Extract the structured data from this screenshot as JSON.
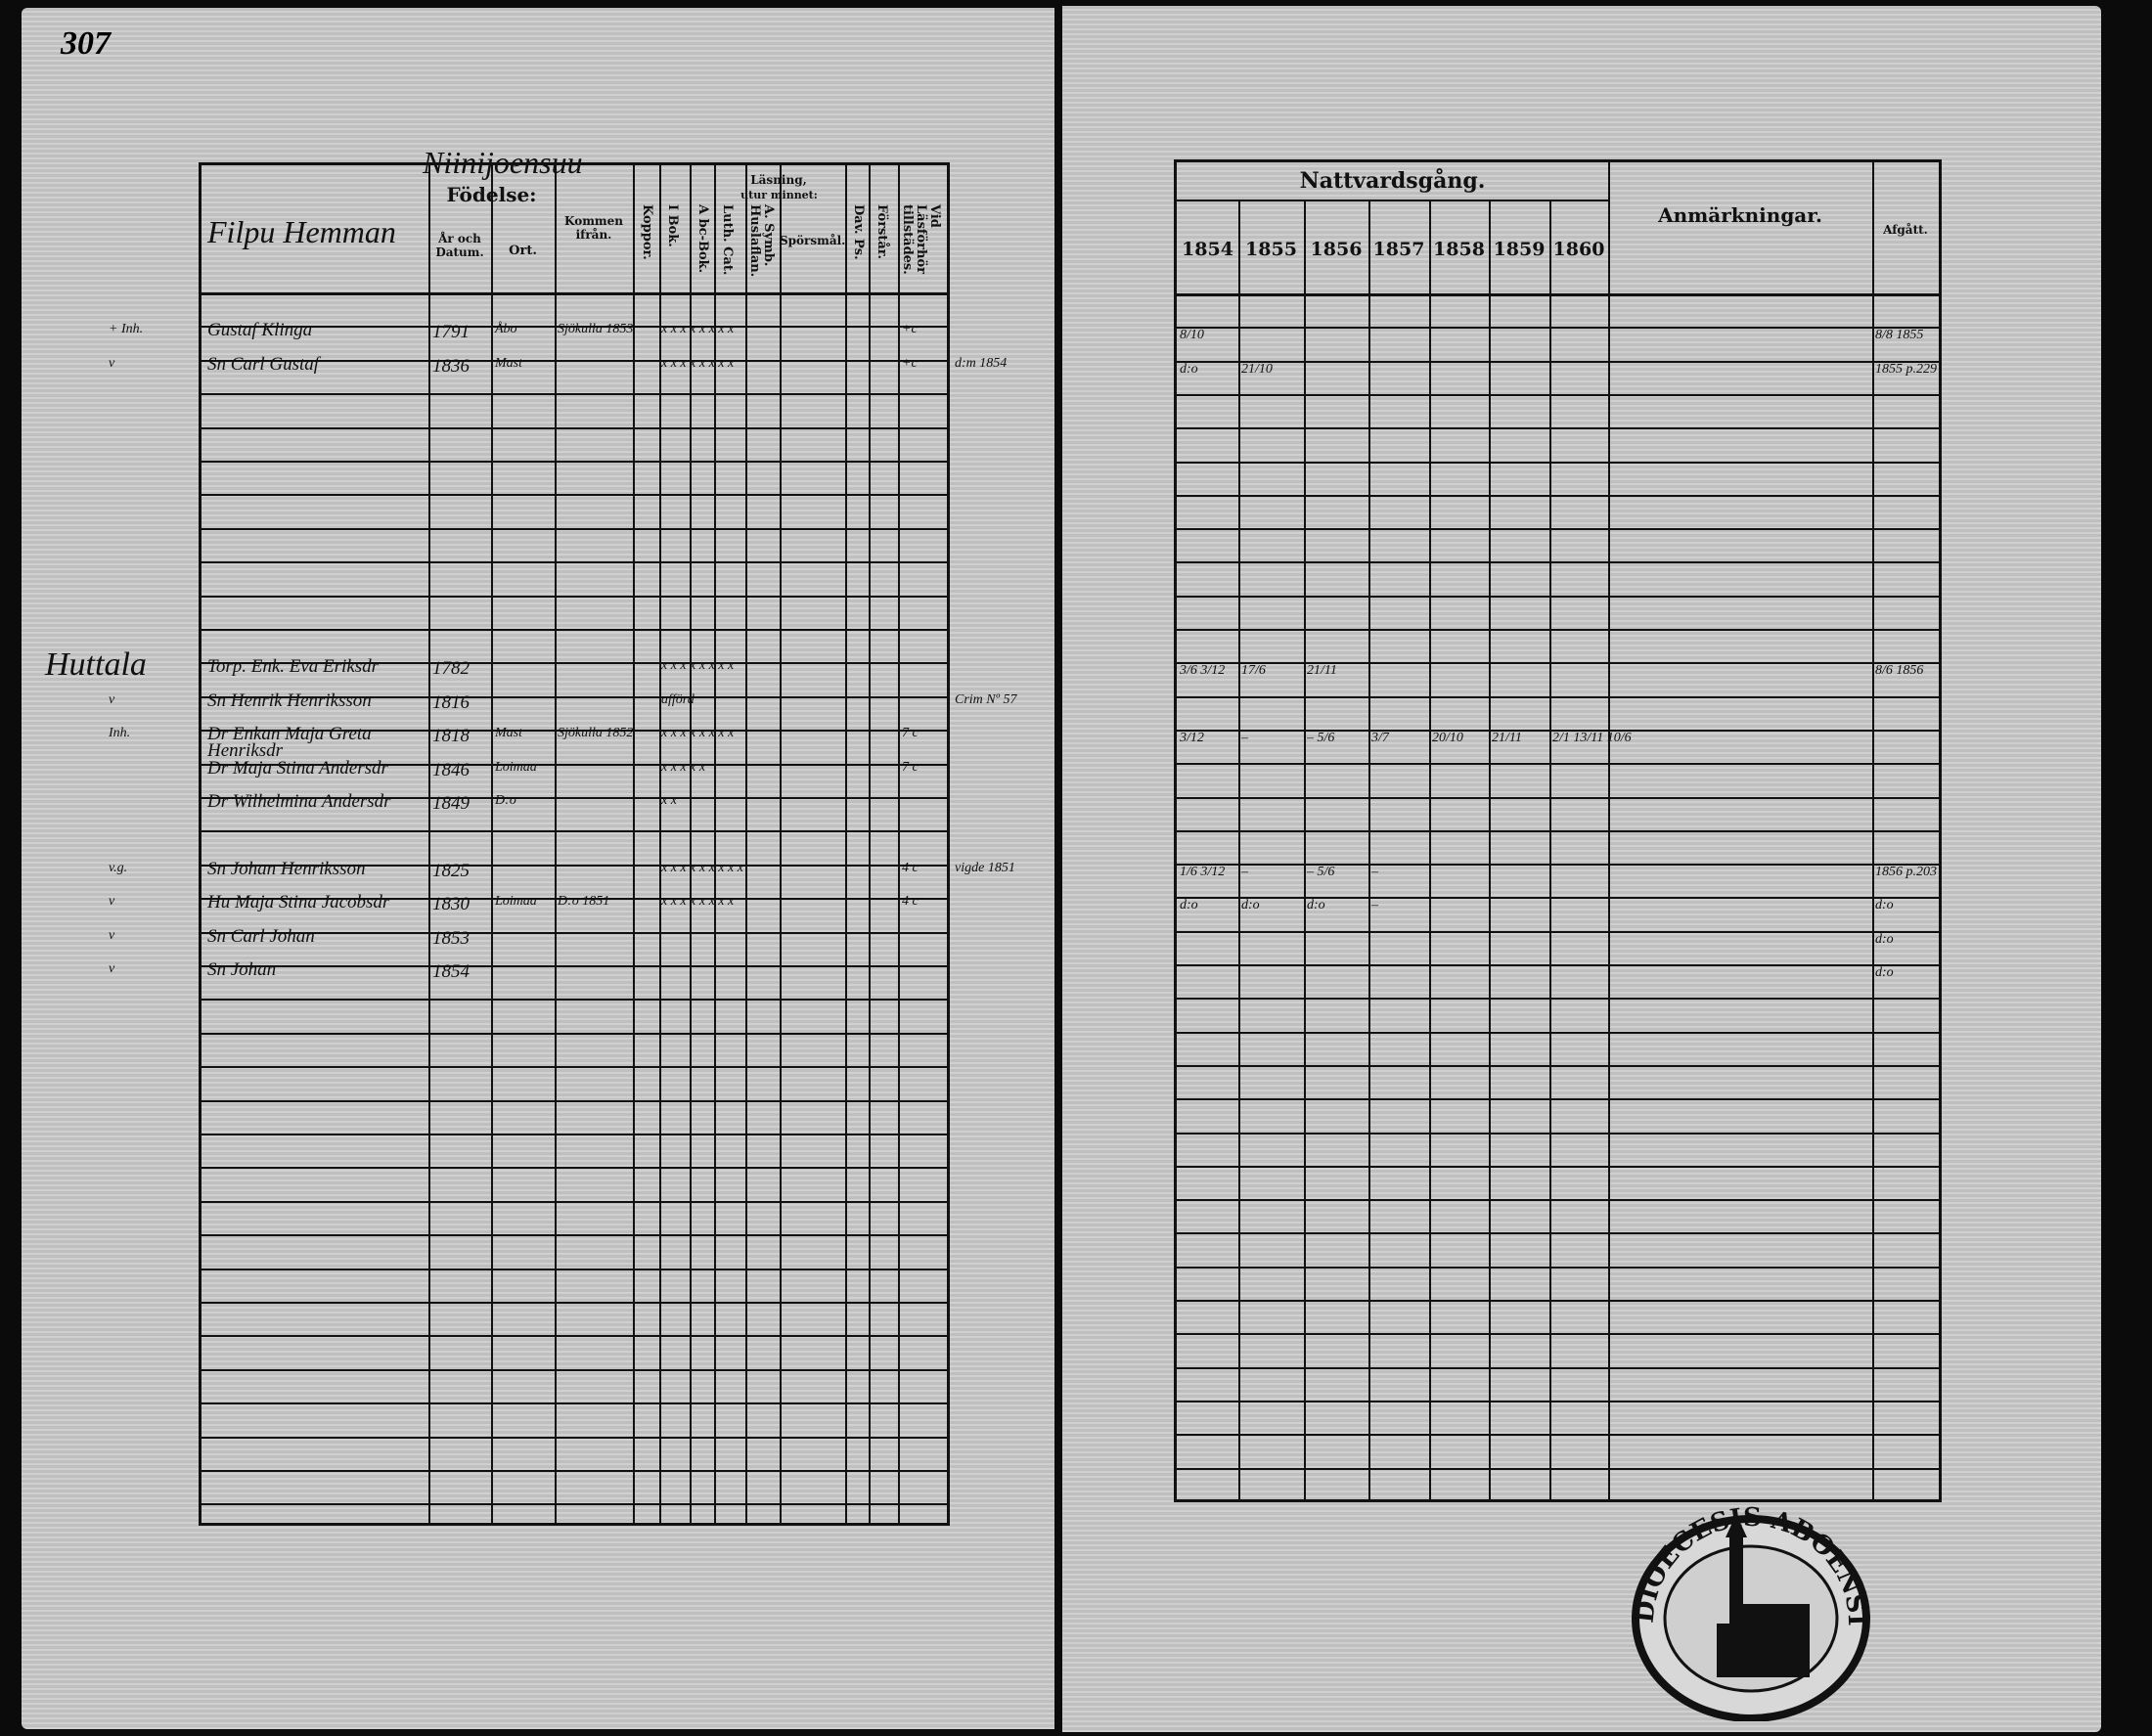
{
  "page_number": "307",
  "village": "Niinijoensuu",
  "left_table": {
    "headers": {
      "farm": "Filpu Hemman",
      "birth": "Födelse:",
      "year_date": "År och Datum.",
      "place": "Ort.",
      "from": "Kommen ifrån.",
      "koppor": "Koppor.",
      "reading": "Läsning,",
      "by_heart": "utur minnet:",
      "i_bok": "I Bok.",
      "abc": "A bc-Bok.",
      "luth": "Luth. Cat.",
      "symb": "A. Symb. Huslaflan.",
      "sporsmal": "Spörsmål.",
      "dav": "Dav. Ps.",
      "forstar": "Förstår.",
      "lasforhor": "Vid Läsförhör tillstädes."
    },
    "rows": [
      {
        "row": 1,
        "margin": "+ Inh.",
        "name": "Gustaf Klinga",
        "year_date": "1791",
        "place": "Åbo",
        "from": "Sjökulla 1853",
        "marks": "x x x x x x x x",
        "lasforhor": "+c"
      },
      {
        "row": 2,
        "margin": "v",
        "name": "Sn Carl Gustaf",
        "year_date": "1836",
        "place": "Mast",
        "marks": "x x x x x x x x",
        "lasforhor": "+c",
        "note": "d:m 1854"
      },
      {
        "row": 11,
        "farm": "Huttala",
        "name": "Torp. Enk. Eva Eriksdr",
        "year_date": "1782",
        "marks": "x x x x x x x x"
      },
      {
        "row": 12,
        "margin": "v",
        "name": "Sn Henrik Henriksson",
        "year_date": "1816",
        "marks": "afförd",
        "note": "Crim Nº 57"
      },
      {
        "row": 13,
        "margin": "Inh.",
        "name": "Dr Enkan Maja Greta Henriksdr",
        "year_date": "1818",
        "place": "Mast",
        "from": "Sjökulla 1852",
        "marks": "x x x x x x x x",
        "lasforhor": "7 c"
      },
      {
        "row": 14,
        "name": "Dr Maja Stina Andersdr",
        "year_date": "1846",
        "place": "Loimaa",
        "marks": "x x x x x",
        "lasforhor": "7 c"
      },
      {
        "row": 15,
        "name": "Dr Wilhelmina Andersdr",
        "year_date": "1849",
        "place": "D:o",
        "marks": "x x"
      },
      {
        "row": 17,
        "margin": "v.g.",
        "name": "Sn Johan Henriksson",
        "year_date": "1825",
        "marks": "x x x x x x x x x",
        "lasforhor": "4 c",
        "note": "vigde 1851"
      },
      {
        "row": 18,
        "margin": "v",
        "name": "Hu Maja Stina Jacobsdr",
        "year_date": "1830",
        "place": "Loimaa",
        "from": "D:o 1851",
        "marks": "x x x x x x x x",
        "lasforhor": "4 c"
      },
      {
        "row": 19,
        "margin": "v",
        "name": "Sn Carl Johan",
        "year_date": "1853"
      },
      {
        "row": 20,
        "margin": "v",
        "name": "Sn Johan",
        "year_date": "1854"
      }
    ]
  },
  "right_table": {
    "headers": {
      "communion": "Nattvardsgång.",
      "years": [
        "1854",
        "1855",
        "1856",
        "1857",
        "1858",
        "1859",
        "1860"
      ],
      "remarks": "Anmärkningar.",
      "departed": "Afgått."
    },
    "rows": [
      {
        "row": 1,
        "years": [
          "8/10",
          "",
          "",
          "",
          "",
          "",
          ""
        ],
        "departed": "8/8 1855"
      },
      {
        "row": 2,
        "years": [
          "d:o",
          "21/10",
          "",
          "",
          "",
          "",
          ""
        ],
        "departed": "1855 p.229"
      },
      {
        "row": 11,
        "years": [
          "3/6  3/12",
          "17/6",
          "21/11",
          "",
          "",
          "",
          ""
        ],
        "departed": "8/6 1856"
      },
      {
        "row": 13,
        "years": [
          "3/12",
          "–",
          "–  5/6",
          "3/7",
          "20/10",
          "21/11",
          "2/1  13/11  10/6"
        ]
      },
      {
        "row": 17,
        "years": [
          "1/6  3/12",
          "–",
          "– 5/6",
          "–",
          "",
          "",
          ""
        ],
        "departed": "1856 p.203"
      },
      {
        "row": 18,
        "years": [
          "d:o",
          "d:o",
          "d:o",
          "–",
          "",
          "",
          ""
        ],
        "departed": "d:o"
      },
      {
        "row": 19,
        "years": [
          "",
          "",
          "",
          "",
          "",
          "",
          ""
        ],
        "departed": "d:o"
      },
      {
        "row": 20,
        "years": [
          "",
          "",
          "",
          "",
          "",
          "",
          ""
        ],
        "departed": "d:o"
      }
    ]
  },
  "stamp": {
    "text": "DIOECESIS ABOENSIS · ARCHIVUM ·"
  }
}
